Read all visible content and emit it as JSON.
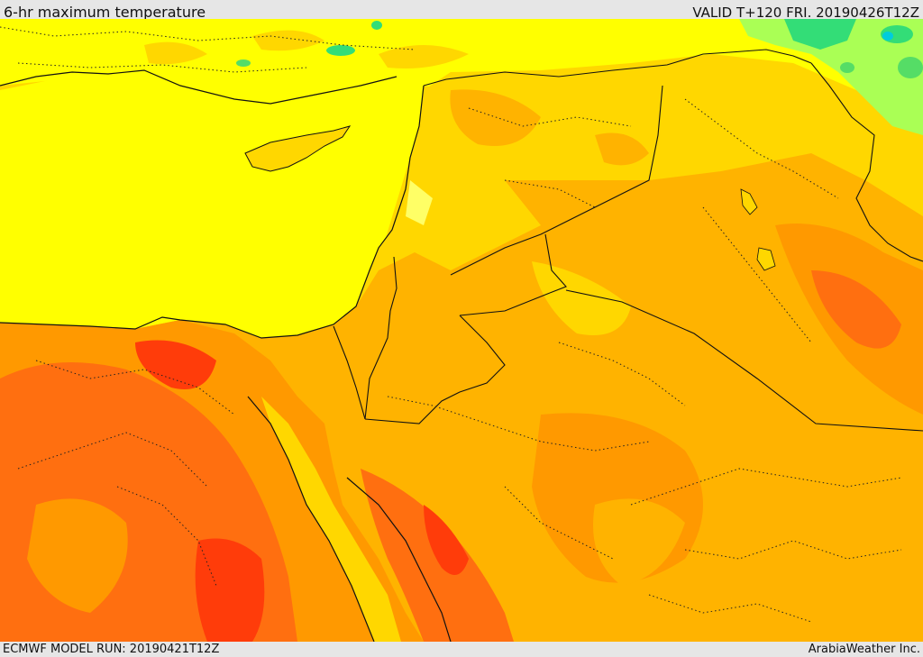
{
  "header": {
    "title": "6-hr maximum temperature",
    "valid": "VALID T+120 FRI. 20190426T12Z"
  },
  "footer": {
    "model_run": "ECMWF MODEL RUN: 20190421T12Z",
    "credit": "ArabiaWeather Inc."
  },
  "colors": {
    "cool_green": "#33dd77",
    "cool_lightgreen": "#aaff55",
    "mild_yellow": "#ffff00",
    "warm_gold": "#ffd700",
    "warm_orange": "#ffb300",
    "hot_orange": "#ff9900",
    "hotter_orange": "#ff6f10",
    "hottest_red": "#ff3c0a",
    "border_line": "#111111"
  }
}
